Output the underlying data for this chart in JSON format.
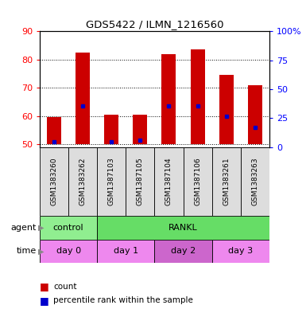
{
  "title": "GDS5422 / ILMN_1216560",
  "samples": [
    "GSM1383260",
    "GSM1383262",
    "GSM1387103",
    "GSM1387105",
    "GSM1387104",
    "GSM1387106",
    "GSM1383261",
    "GSM1383263"
  ],
  "count_values": [
    59.5,
    82.5,
    60.5,
    60.5,
    82.0,
    83.5,
    74.5,
    71.0
  ],
  "count_bottom": [
    50,
    50,
    50,
    50,
    50,
    50,
    50,
    50
  ],
  "percentile_values": [
    51.0,
    63.5,
    51.0,
    51.5,
    63.5,
    63.5,
    60.0,
    56.0
  ],
  "ylim_left": [
    49,
    90
  ],
  "ylim_right": [
    0,
    100
  ],
  "yticks_left": [
    50,
    60,
    70,
    80,
    90
  ],
  "yticks_right": [
    0,
    25,
    50,
    75,
    100
  ],
  "bar_color": "#CC0000",
  "percentile_color": "#0000CC",
  "bar_width": 0.5,
  "background_color": "#ffffff",
  "agent_info": [
    {
      "label": "control",
      "start": 0,
      "end": 2,
      "color": "#90EE90"
    },
    {
      "label": "RANKL",
      "start": 2,
      "end": 8,
      "color": "#66DD66"
    }
  ],
  "time_info": [
    {
      "label": "day 0",
      "start": 0,
      "end": 2,
      "color": "#EE88EE"
    },
    {
      "label": "day 1",
      "start": 2,
      "end": 4,
      "color": "#EE88EE"
    },
    {
      "label": "day 2",
      "start": 4,
      "end": 6,
      "color": "#CC66CC"
    },
    {
      "label": "day 3",
      "start": 6,
      "end": 8,
      "color": "#EE88EE"
    }
  ],
  "legend_items": [
    {
      "color": "#CC0000",
      "label": "count"
    },
    {
      "color": "#0000CC",
      "label": "percentile rank within the sample"
    }
  ]
}
